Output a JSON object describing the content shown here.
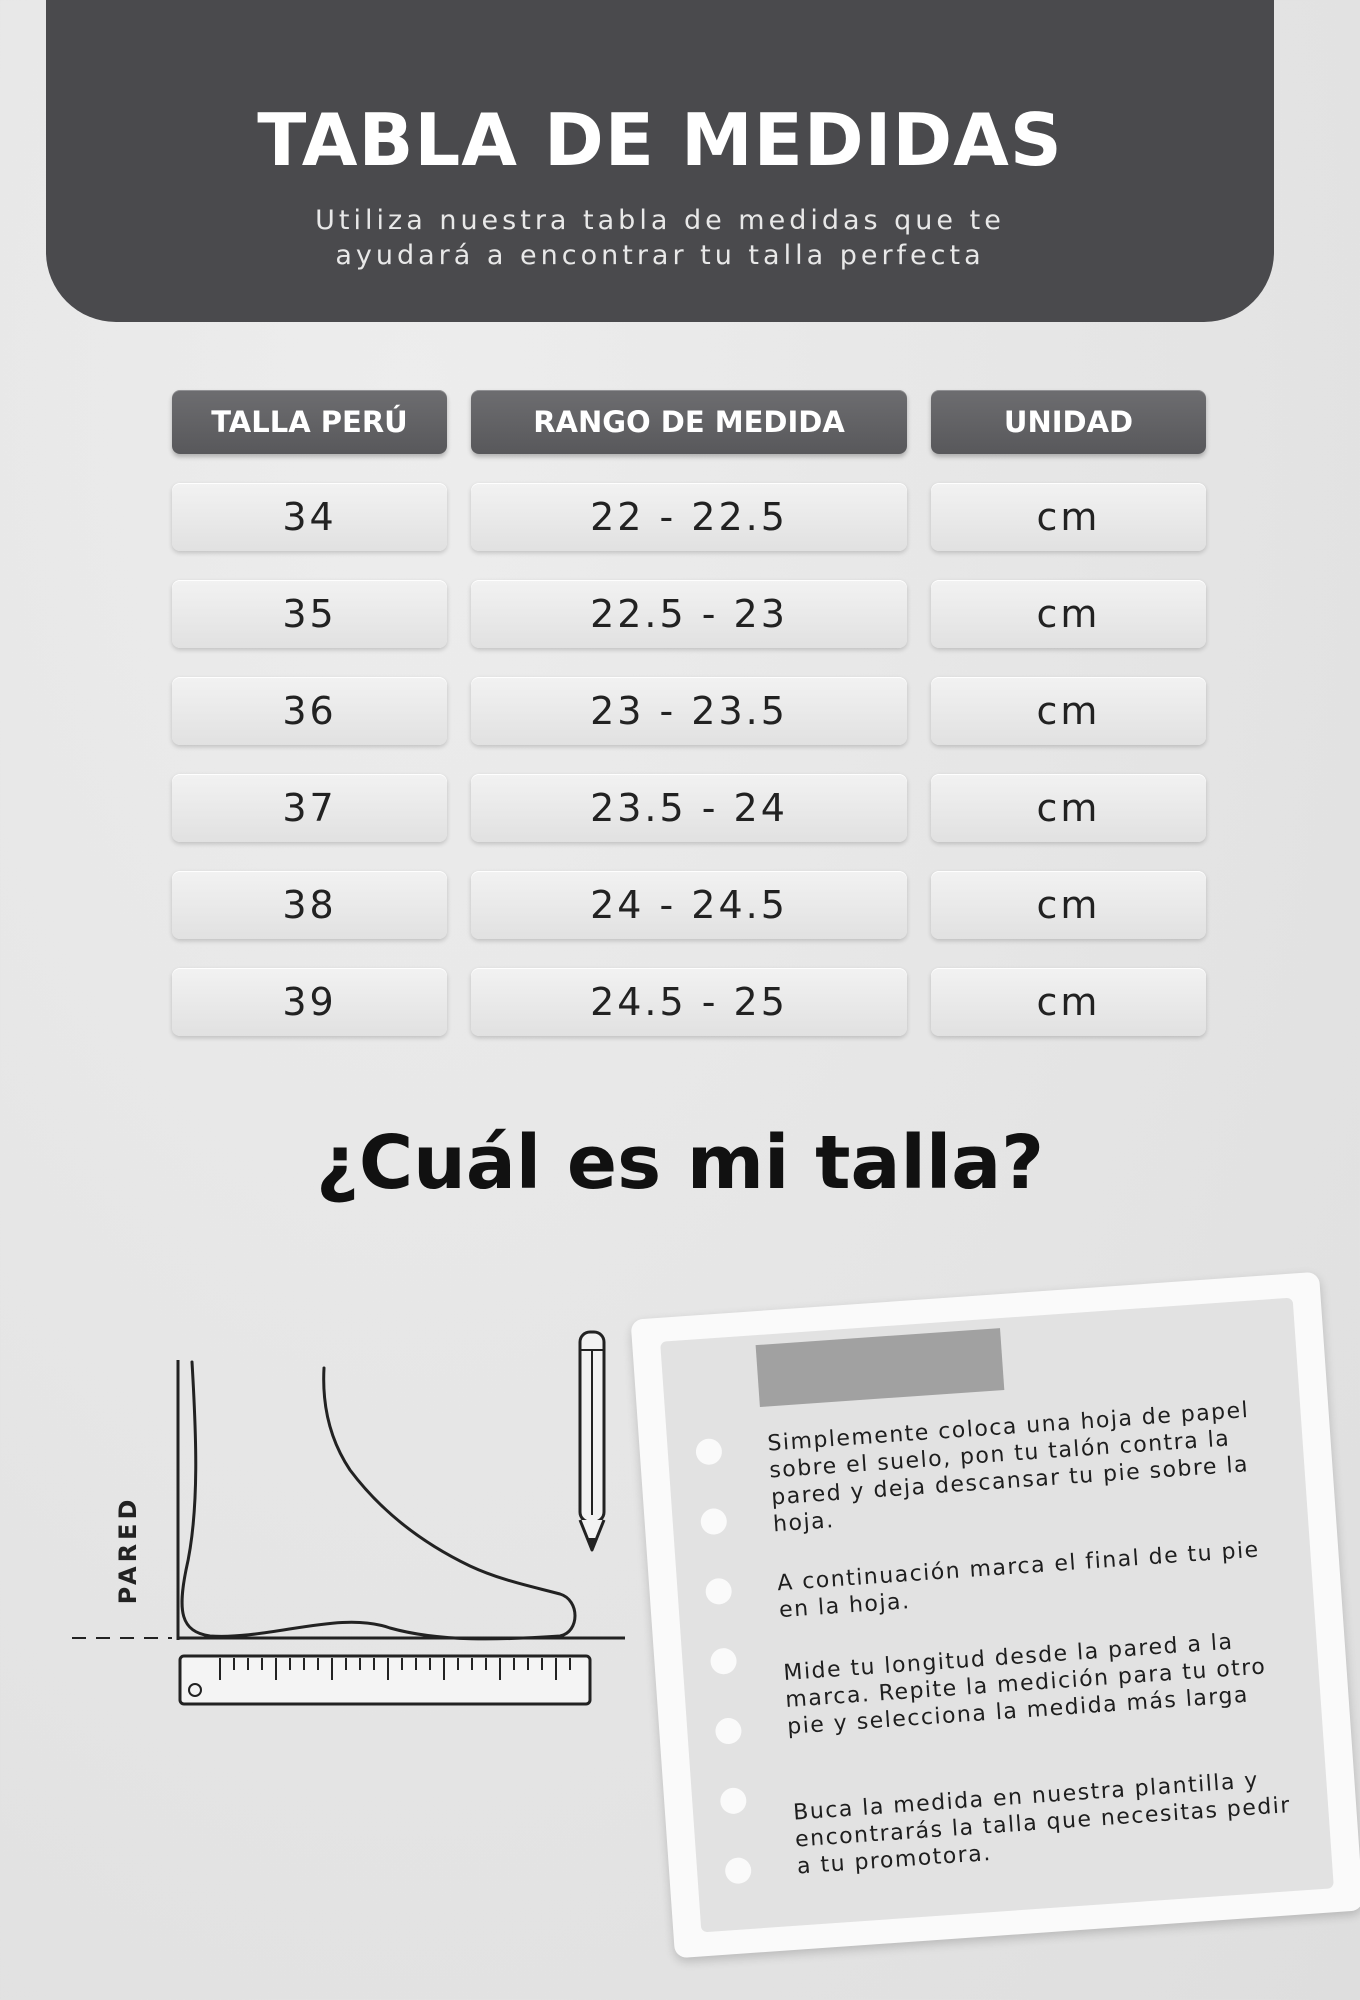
{
  "header": {
    "title": "TABLA DE MEDIDAS",
    "subtitle_line1": "Utiliza nuestra tabla de medidas que te",
    "subtitle_line2": "ayudará a encontrar tu talla perfecta"
  },
  "table": {
    "headers": [
      "TALLA PERÚ",
      "RANGO DE MEDIDA",
      "UNIDAD"
    ],
    "rows": [
      {
        "talla": "34",
        "rango": "22 - 22.5",
        "unidad": "cm"
      },
      {
        "talla": "35",
        "rango": "22.5 - 23",
        "unidad": "cm"
      },
      {
        "talla": "36",
        "rango": "23 - 23.5",
        "unidad": "cm"
      },
      {
        "talla": "37",
        "rango": "23.5 - 24",
        "unidad": "cm"
      },
      {
        "talla": "38",
        "rango": "24 - 24.5",
        "unidad": "cm"
      },
      {
        "talla": "39",
        "rango": "24.5 - 25",
        "unidad": "cm"
      }
    ]
  },
  "question": "¿Cuál es mi talla?",
  "diagram": {
    "wall_label": "PARED",
    "icons": [
      "foot-outline-icon",
      "pencil-icon",
      "ruler-icon"
    ]
  },
  "instructions": {
    "steps": [
      "Simplemente coloca una hoja de papel sobre el suelo, pon tu talón contra la pared y deja descansar tu pie sobre la hoja.",
      "A continuación marca el final de tu pie en la hoja.",
      "Mide tu longitud desde la pared a la marca. Repite la medición para tu otro pie y selecciona la medida más larga",
      "Buca la medida en nuestra plantilla y encontrarás la talla que necesitas pedir a tu promotora."
    ]
  },
  "colors": {
    "header_bg": "#4a4a4d",
    "table_header_bg": "#5f5f62",
    "cell_bg": "#e8e8e8",
    "tape": "#9a9a9a"
  }
}
